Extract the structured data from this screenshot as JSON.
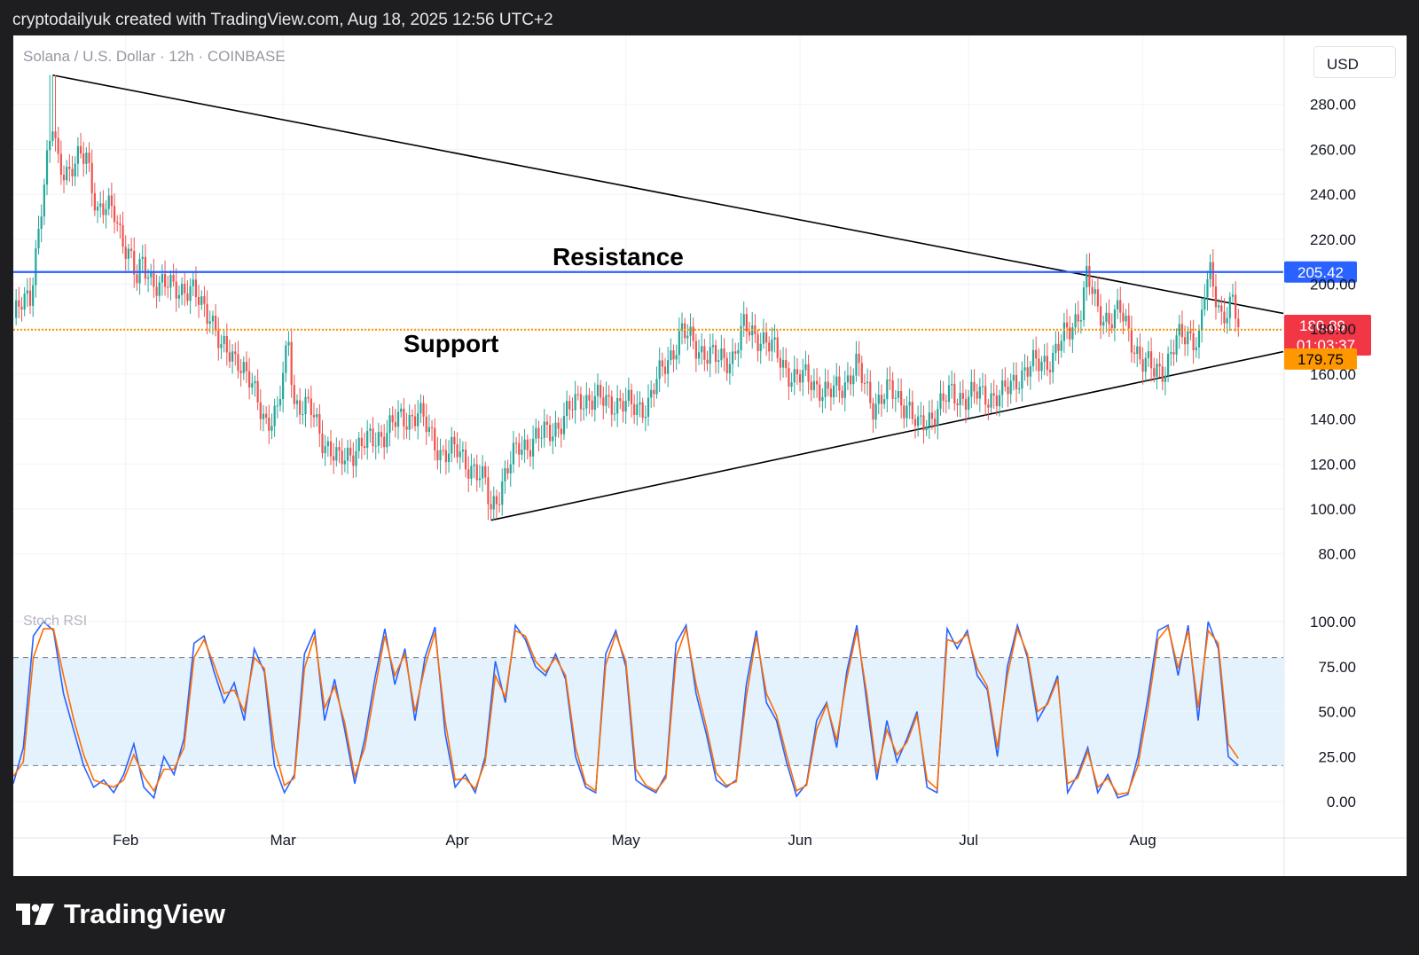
{
  "header": {
    "attribution": "cryptodailyuk created with TradingView.com, Aug 18, 2025 12:56 UTC+2"
  },
  "brand": {
    "name": "TradingView"
  },
  "toolbar": {
    "currency_button": "USD"
  },
  "colors": {
    "up": "#26a69a",
    "down": "#ef5350",
    "resistance": "#2962ff",
    "support": "#ff9800",
    "price_badge": "#f23645",
    "rsi_k": "#2962ff",
    "rsi_d": "#ff6d00",
    "rsi_band": "#e3f2fd"
  },
  "chart_data": [
    {
      "type": "candlestick",
      "symbol_label": "Solana / U.S. Dollar · 12h · COINBASE",
      "ylim": [
        70,
        300
      ],
      "y_ticks": [
        80,
        100,
        120,
        140,
        160,
        180,
        200,
        220,
        240,
        260,
        280
      ],
      "y_tick_labels": [
        "80.00",
        "100.00",
        "120.00",
        "140.00",
        "160.00",
        "180.00",
        "200.00",
        "220.00",
        "240.00",
        "260.00",
        "280.00"
      ],
      "x_range": [
        "2025-01-12",
        "2025-08-26"
      ],
      "x_ticks": [
        {
          "date": "2025-02-01",
          "label": "Feb"
        },
        {
          "date": "2025-03-01",
          "label": "Mar"
        },
        {
          "date": "2025-04-01",
          "label": "Apr"
        },
        {
          "date": "2025-05-01",
          "label": "May"
        },
        {
          "date": "2025-06-01",
          "label": "Jun"
        },
        {
          "date": "2025-07-01",
          "label": "Jul"
        },
        {
          "date": "2025-08-01",
          "label": "Aug"
        }
      ],
      "close_path": [
        [
          "2025-01-12",
          185
        ],
        [
          "2025-01-15",
          195
        ],
        [
          "2025-01-17",
          235
        ],
        [
          "2025-01-19",
          270
        ],
        [
          "2025-01-20",
          255
        ],
        [
          "2025-01-22",
          250
        ],
        [
          "2025-01-25",
          258
        ],
        [
          "2025-01-27",
          233
        ],
        [
          "2025-01-30",
          232
        ],
        [
          "2025-02-02",
          210
        ],
        [
          "2025-02-03",
          200
        ],
        [
          "2025-02-04",
          210
        ],
        [
          "2025-02-07",
          198
        ],
        [
          "2025-02-10",
          200
        ],
        [
          "2025-02-13",
          195
        ],
        [
          "2025-02-16",
          188
        ],
        [
          "2025-02-18",
          170
        ],
        [
          "2025-02-21",
          168
        ],
        [
          "2025-02-24",
          150
        ],
        [
          "2025-02-26",
          140
        ],
        [
          "2025-02-28",
          142
        ],
        [
          "2025-03-02",
          175
        ],
        [
          "2025-03-03",
          148
        ],
        [
          "2025-03-06",
          143
        ],
        [
          "2025-03-08",
          132
        ],
        [
          "2025-03-11",
          120
        ],
        [
          "2025-03-14",
          128
        ],
        [
          "2025-03-17",
          130
        ],
        [
          "2025-03-20",
          137
        ],
        [
          "2025-03-23",
          140
        ],
        [
          "2025-03-25",
          144
        ],
        [
          "2025-03-27",
          133
        ],
        [
          "2025-03-29",
          126
        ],
        [
          "2025-04-01",
          125
        ],
        [
          "2025-04-04",
          118
        ],
        [
          "2025-04-06",
          110
        ],
        [
          "2025-04-07",
          100
        ],
        [
          "2025-04-09",
          112
        ],
        [
          "2025-04-12",
          128
        ],
        [
          "2025-04-16",
          132
        ],
        [
          "2025-04-20",
          140
        ],
        [
          "2025-04-23",
          150
        ],
        [
          "2025-04-26",
          148
        ],
        [
          "2025-04-29",
          148
        ],
        [
          "2025-05-02",
          145
        ],
        [
          "2025-05-05",
          147
        ],
        [
          "2025-05-08",
          165
        ],
        [
          "2025-05-11",
          178
        ],
        [
          "2025-05-14",
          172
        ],
        [
          "2025-05-17",
          166
        ],
        [
          "2025-05-20",
          168
        ],
        [
          "2025-05-22",
          180
        ],
        [
          "2025-05-25",
          177
        ],
        [
          "2025-05-28",
          168
        ],
        [
          "2025-05-31",
          158
        ],
        [
          "2025-06-03",
          158
        ],
        [
          "2025-06-06",
          150
        ],
        [
          "2025-06-09",
          157
        ],
        [
          "2025-06-11",
          163
        ],
        [
          "2025-06-14",
          147
        ],
        [
          "2025-06-17",
          152
        ],
        [
          "2025-06-20",
          147
        ],
        [
          "2025-06-22",
          135
        ],
        [
          "2025-06-25",
          144
        ],
        [
          "2025-06-28",
          151
        ],
        [
          "2025-07-01",
          150
        ],
        [
          "2025-07-04",
          151
        ],
        [
          "2025-07-07",
          150
        ],
        [
          "2025-07-10",
          160
        ],
        [
          "2025-07-13",
          164
        ],
        [
          "2025-07-16",
          168
        ],
        [
          "2025-07-19",
          180
        ],
        [
          "2025-07-21",
          190
        ],
        [
          "2025-07-22",
          203
        ],
        [
          "2025-07-24",
          188
        ],
        [
          "2025-07-26",
          185
        ],
        [
          "2025-07-28",
          187
        ],
        [
          "2025-07-30",
          176
        ],
        [
          "2025-08-01",
          165
        ],
        [
          "2025-08-03",
          161
        ],
        [
          "2025-08-05",
          164
        ],
        [
          "2025-08-07",
          174
        ],
        [
          "2025-08-09",
          178
        ],
        [
          "2025-08-11",
          176
        ],
        [
          "2025-08-12",
          196
        ],
        [
          "2025-08-13",
          203
        ],
        [
          "2025-08-15",
          187
        ],
        [
          "2025-08-17",
          191
        ],
        [
          "2025-08-18",
          180.89
        ]
      ],
      "key_points": {
        "high": [
          "2025-01-19",
          293
        ],
        "low": [
          "2025-04-07",
          95
        ]
      },
      "levels": [
        {
          "name": "Resistance",
          "value": 205.42,
          "label": "205.42",
          "style": "solid"
        },
        {
          "name": "Support",
          "value": 179.75,
          "label": "179.75",
          "style": "dotted"
        }
      ],
      "annotations": [
        "Resistance",
        "Support"
      ],
      "trendlines": [
        {
          "from": [
            "2025-01-19",
            293
          ],
          "to": [
            "2025-08-26",
            187
          ]
        },
        {
          "from": [
            "2025-04-07",
            95
          ],
          "to": [
            "2025-08-26",
            170
          ]
        }
      ],
      "last_price": {
        "value": 180.89,
        "label": "180.89",
        "countdown": "01:03:37"
      }
    },
    {
      "type": "line",
      "title": "Stoch RSI",
      "ylim": [
        -5,
        105
      ],
      "y_ticks": [
        0,
        25,
        50,
        75,
        100
      ],
      "y_tick_labels": [
        "0.00",
        "25.00",
        "50.00",
        "75.00",
        "100.00"
      ],
      "bands": {
        "upper": 80,
        "middle": 50,
        "lower": 20
      },
      "series": [
        {
          "key": "k",
          "values": [
            10,
            30,
            92,
            100,
            95,
            60,
            40,
            20,
            8,
            12,
            5,
            15,
            32,
            8,
            2,
            25,
            15,
            35,
            88,
            92,
            72,
            55,
            66,
            45,
            85,
            72,
            20,
            5,
            15,
            82,
            95,
            45,
            68,
            40,
            10,
            35,
            68,
            96,
            65,
            85,
            45,
            80,
            97,
            38,
            8,
            15,
            5,
            25,
            78,
            55,
            98,
            90,
            75,
            70,
            82,
            68,
            25,
            8,
            5,
            82,
            95,
            75,
            12,
            8,
            5,
            15,
            88,
            98,
            60,
            38,
            12,
            8,
            12,
            65,
            95,
            55,
            45,
            22,
            3,
            10,
            45,
            55,
            30,
            72,
            98,
            55,
            12,
            45,
            22,
            35,
            50,
            8,
            5,
            96,
            85,
            95,
            70,
            62,
            25,
            75,
            98,
            80,
            45,
            55,
            70,
            5,
            15,
            30,
            5,
            15,
            2,
            4,
            25,
            58,
            95,
            98,
            70,
            98,
            45,
            100,
            85,
            25,
            20
          ]
        },
        {
          "key": "d",
          "values": [
            14,
            22,
            80,
            96,
            96,
            70,
            46,
            26,
            12,
            10,
            8,
            12,
            26,
            14,
            6,
            18,
            18,
            30,
            80,
            90,
            76,
            60,
            62,
            50,
            80,
            74,
            30,
            9,
            13,
            74,
            92,
            52,
            64,
            44,
            14,
            30,
            62,
            92,
            70,
            82,
            50,
            75,
            94,
            45,
            12,
            13,
            7,
            22,
            70,
            58,
            95,
            92,
            78,
            72,
            80,
            70,
            30,
            10,
            6,
            76,
            93,
            78,
            18,
            9,
            6,
            13,
            80,
            96,
            65,
            42,
            16,
            9,
            11,
            58,
            92,
            60,
            48,
            26,
            6,
            9,
            40,
            54,
            34,
            68,
            95,
            60,
            16,
            40,
            26,
            33,
            48,
            12,
            7,
            90,
            88,
            93,
            74,
            64,
            30,
            70,
            96,
            82,
            50,
            54,
            68,
            10,
            13,
            28,
            8,
            13,
            4,
            5,
            20,
            52,
            90,
            97,
            74,
            95,
            52,
            95,
            88,
            32,
            24
          ]
        }
      ]
    }
  ]
}
